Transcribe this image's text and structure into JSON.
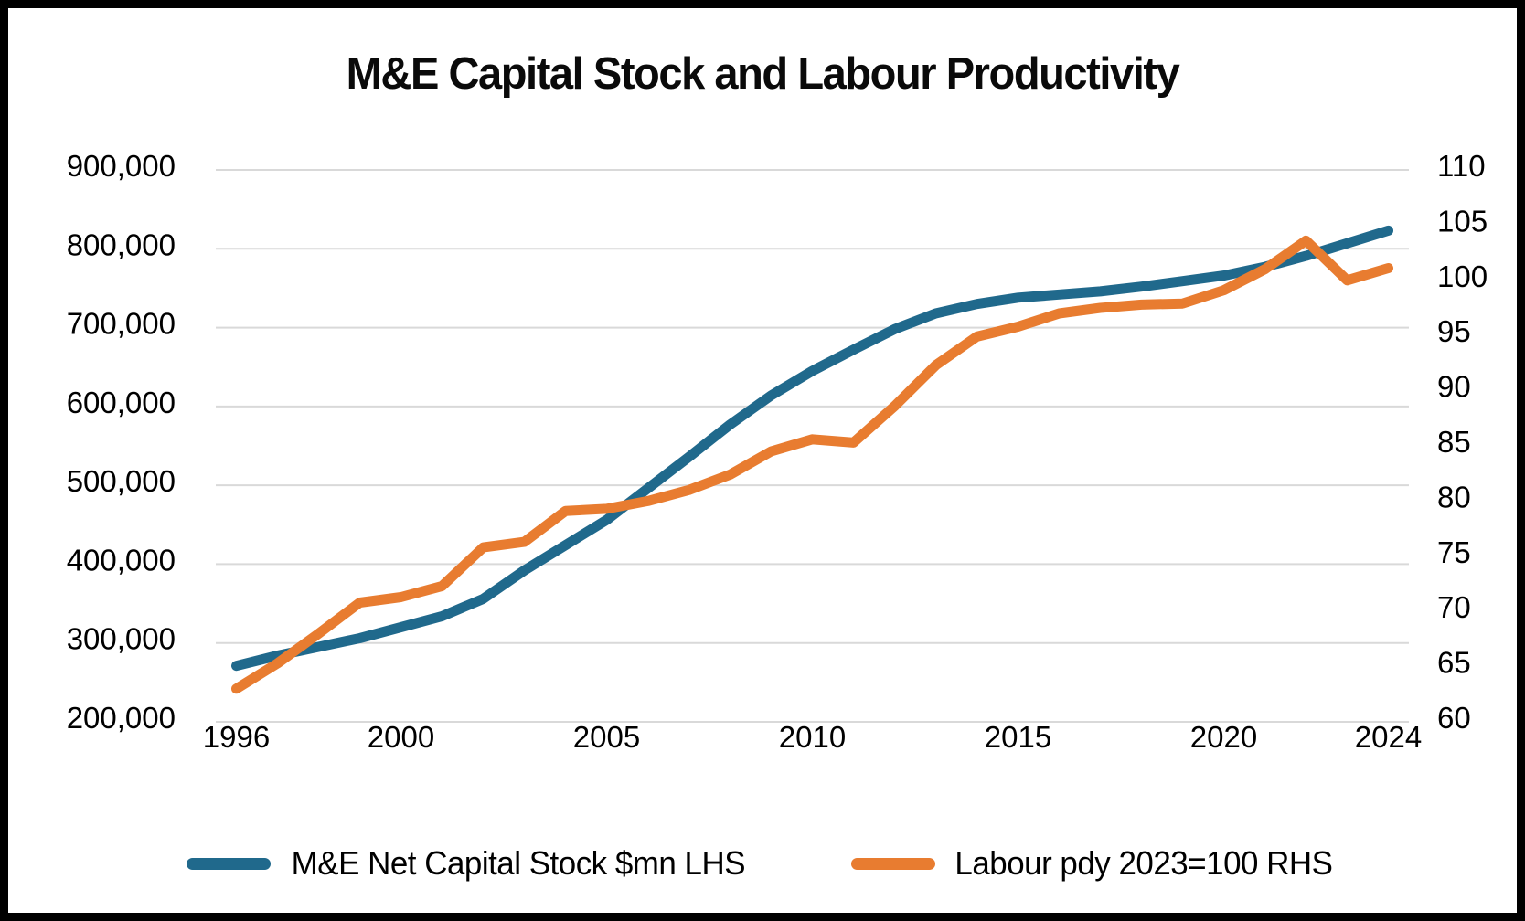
{
  "title": "M&E Capital Stock and Labour Productivity",
  "legend": [
    {
      "label": "M&E Net Capital Stock $mn LHS",
      "color": "#20698C"
    },
    {
      "label": "Labour pdy 2023=100 RHS",
      "color": "#E87C30"
    }
  ],
  "colors": {
    "grid": "#D9D9D9",
    "background": "#FFFFFF",
    "frame": "#000000",
    "capital_stock_line": "#20698C",
    "labour_pdy_line": "#E87C30"
  },
  "chart_data": {
    "type": "line",
    "title": "M&E Capital Stock and Labour Productivity",
    "x": [
      1996,
      1997,
      1998,
      1999,
      2000,
      2001,
      2002,
      2003,
      2004,
      2005,
      2006,
      2007,
      2008,
      2009,
      2010,
      2011,
      2012,
      2013,
      2014,
      2015,
      2016,
      2017,
      2018,
      2019,
      2020,
      2021,
      2022,
      2023,
      2024
    ],
    "x_tick_labels": [
      "1996",
      "2000",
      "2005",
      "2010",
      "2015",
      "2020",
      "2024"
    ],
    "grid": true,
    "legend_position": "bottom",
    "left_axis": {
      "min": 200000,
      "max": 900000,
      "tick_step": 100000,
      "tick_labels": [
        "900,000",
        "800,000",
        "700,000",
        "600,000",
        "500,000",
        "400,000",
        "300,000",
        "200,000"
      ]
    },
    "right_axis": {
      "min": 60,
      "max": 110,
      "tick_step": 5,
      "tick_labels": [
        "110",
        "105",
        "100",
        "95",
        "90",
        "85",
        "80",
        "75",
        "70",
        "65",
        "60"
      ]
    },
    "series": [
      {
        "name": "M&E Net Capital Stock $mn LHS",
        "axis": "left",
        "color": "#20698C",
        "values": [
          271000,
          284000,
          295000,
          306000,
          320000,
          334000,
          356000,
          392000,
          424000,
          456000,
          496000,
          536000,
          577000,
          614000,
          645000,
          672000,
          698000,
          718000,
          730000,
          738000,
          742000,
          746000,
          752000,
          759000,
          766000,
          777000,
          791000,
          807000,
          823000
        ]
      },
      {
        "name": "Labour pdy 2023=100 RHS",
        "axis": "right",
        "color": "#E87C30",
        "values": [
          63.0,
          65.3,
          68.0,
          70.8,
          71.3,
          72.3,
          75.8,
          76.3,
          79.1,
          79.3,
          80.0,
          81.0,
          82.4,
          84.5,
          85.6,
          85.3,
          88.6,
          92.3,
          94.9,
          95.8,
          97.0,
          97.5,
          97.8,
          97.9,
          99.1,
          101.0,
          103.6,
          100.0,
          101.1
        ]
      }
    ]
  }
}
